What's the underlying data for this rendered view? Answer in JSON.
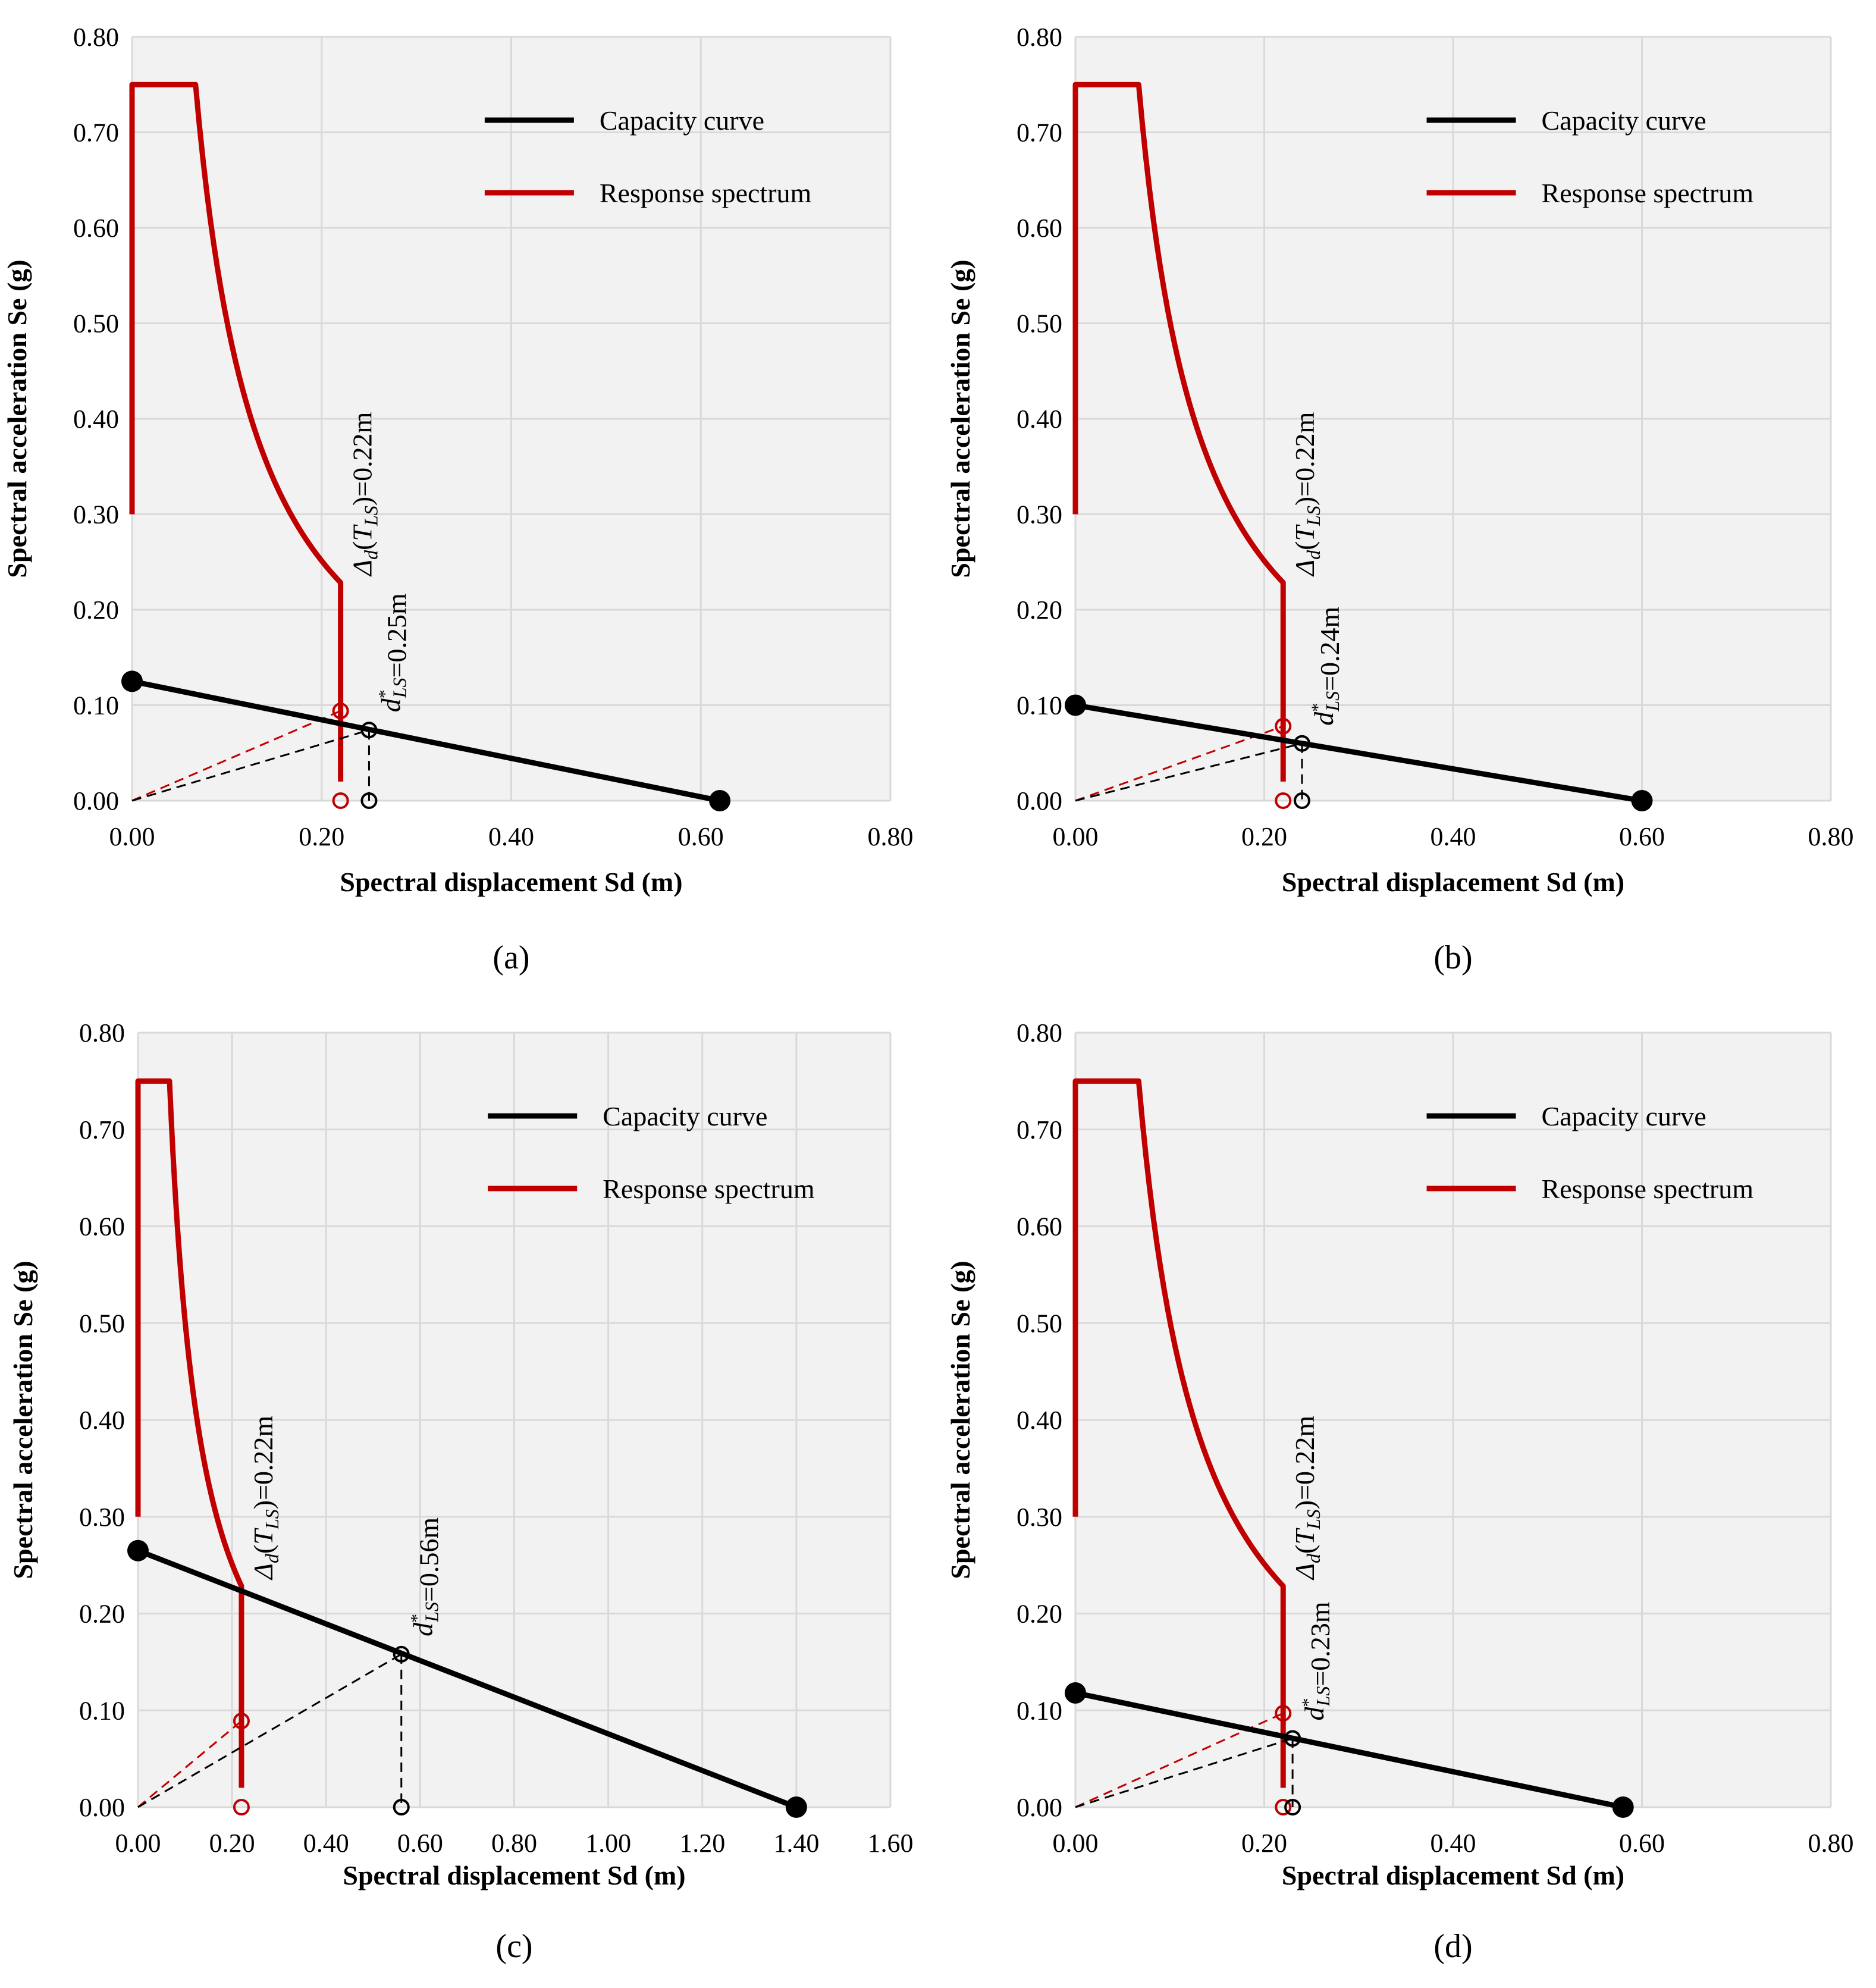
{
  "colors": {
    "capacity": "#000000",
    "spectrum": "#c00000",
    "plot_bg": "#f2f2f2",
    "grid": "#d9d9d9"
  },
  "chart_data": [
    {
      "type": "line",
      "panel_label": "(a)",
      "xlabel": "Spectral displacement Sd (m)",
      "ylabel": "Spectral acceleration Se (g)",
      "xlim": [
        0,
        0.8
      ],
      "ylim": [
        0,
        0.8
      ],
      "xticks": [
        "0.00",
        "0.20",
        "0.40",
        "0.60",
        "0.80"
      ],
      "yticks": [
        "0.00",
        "0.10",
        "0.20",
        "0.30",
        "0.40",
        "0.50",
        "0.60",
        "0.70",
        "0.80"
      ],
      "grid": true,
      "legend": [
        "Capacity curve",
        "Response spectrum"
      ],
      "legend_position": "top-right",
      "series": [
        {
          "name": "Capacity curve",
          "points": [
            [
              0.0,
              0.125
            ],
            [
              0.62,
              0.0
            ]
          ]
        },
        {
          "name": "Response spectrum",
          "Se_max": 0.75,
          "start_Se": 0.3,
          "plateau_end_Sd": 0.067,
          "corner_Sd": 0.22
        }
      ],
      "target_points": {
        "delta_d": [
          0.22,
          0.094
        ],
        "d_star": [
          0.25,
          0.074
        ]
      },
      "annotations": {
        "delta_d_label": "=0.22m",
        "d_star_label": "=0.25m"
      }
    },
    {
      "type": "line",
      "panel_label": "(b)",
      "xlabel": "Spectral displacement Sd (m)",
      "ylabel": "Spectral acceleration Se (g)",
      "xlim": [
        0,
        0.8
      ],
      "ylim": [
        0,
        0.8
      ],
      "xticks": [
        "0.00",
        "0.20",
        "0.40",
        "0.60",
        "0.80"
      ],
      "yticks": [
        "0.00",
        "0.10",
        "0.20",
        "0.30",
        "0.40",
        "0.50",
        "0.60",
        "0.70",
        "0.80"
      ],
      "grid": true,
      "legend": [
        "Capacity curve",
        "Response spectrum"
      ],
      "legend_position": "top-right",
      "series": [
        {
          "name": "Capacity curve",
          "points": [
            [
              0.0,
              0.1
            ],
            [
              0.6,
              0.0
            ]
          ]
        },
        {
          "name": "Response spectrum",
          "Se_max": 0.75,
          "start_Se": 0.3,
          "plateau_end_Sd": 0.067,
          "corner_Sd": 0.22
        }
      ],
      "target_points": {
        "delta_d": [
          0.22,
          0.078
        ],
        "d_star": [
          0.24,
          0.06
        ]
      },
      "annotations": {
        "delta_d_label": "=0.22m",
        "d_star_label": "=0.24m"
      }
    },
    {
      "type": "line",
      "panel_label": "(c)",
      "xlabel": "Spectral displacement Sd (m)",
      "ylabel": "Spectral acceleration Se (g)",
      "xlim": [
        0,
        1.6
      ],
      "ylim": [
        0,
        0.8
      ],
      "xticks": [
        "0.00",
        "0.20",
        "0.40",
        "0.60",
        "0.80",
        "1.00",
        "1.20",
        "1.40",
        "1.60"
      ],
      "yticks": [
        "0.00",
        "0.10",
        "0.20",
        "0.30",
        "0.40",
        "0.50",
        "0.60",
        "0.70",
        "0.80"
      ],
      "grid": true,
      "legend": [
        "Capacity curve",
        "Response spectrum"
      ],
      "legend_position": "top-right",
      "series": [
        {
          "name": "Capacity curve",
          "points": [
            [
              0.0,
              0.265
            ],
            [
              1.4,
              0.0
            ]
          ]
        },
        {
          "name": "Response spectrum",
          "Se_max": 0.75,
          "start_Se": 0.3,
          "plateau_end_Sd": 0.067,
          "corner_Sd": 0.22
        }
      ],
      "target_points": {
        "delta_d": [
          0.22,
          0.089
        ],
        "d_star": [
          0.56,
          0.158
        ]
      },
      "annotations": {
        "delta_d_label": "=0.22m",
        "d_star_label": "=0.56m"
      }
    },
    {
      "type": "line",
      "panel_label": "(d)",
      "xlabel": "Spectral displacement Sd (m)",
      "ylabel": "Spectral acceleration Se (g)",
      "xlim": [
        0,
        0.8
      ],
      "ylim": [
        0,
        0.8
      ],
      "xticks": [
        "0.00",
        "0.20",
        "0.40",
        "0.60",
        "0.80"
      ],
      "yticks": [
        "0.00",
        "0.10",
        "0.20",
        "0.30",
        "0.40",
        "0.50",
        "0.60",
        "0.70",
        "0.80"
      ],
      "grid": true,
      "legend": [
        "Capacity curve",
        "Response spectrum"
      ],
      "legend_position": "top-right",
      "series": [
        {
          "name": "Capacity curve",
          "points": [
            [
              0.0,
              0.118
            ],
            [
              0.58,
              0.0
            ]
          ]
        },
        {
          "name": "Response spectrum",
          "Se_max": 0.75,
          "start_Se": 0.3,
          "plateau_end_Sd": 0.067,
          "corner_Sd": 0.22
        }
      ],
      "target_points": {
        "delta_d": [
          0.22,
          0.097
        ],
        "d_star": [
          0.23,
          0.071
        ]
      },
      "annotations": {
        "delta_d_label": "=0.22m",
        "d_star_label": "=0.23m"
      }
    }
  ]
}
